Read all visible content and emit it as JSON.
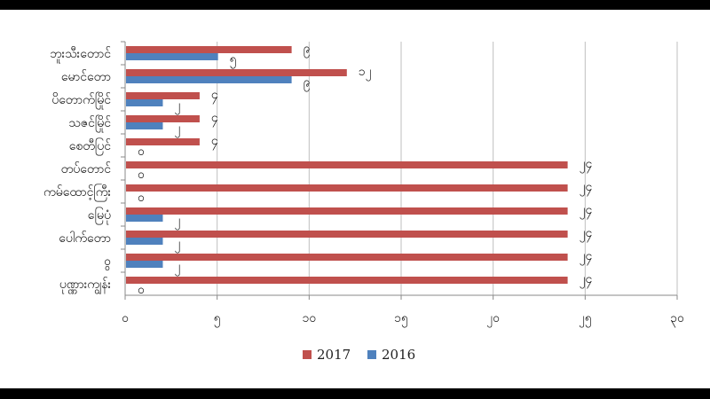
{
  "chart_data": {
    "type": "bar",
    "orientation": "horizontal",
    "categories": [
      "ဘူးသီးတောင်",
      "မောင်တော",
      "ပိတောက်မြိုင်",
      "သဇင်မြိုင်",
      "စေတီပြင်",
      "တပ်တောင်",
      "ကမ်ထောင့်ကြီး",
      "မြေပုံ",
      "ပေါက်တော",
      "ဝွ",
      "ပုဏ္ဏားကျွန်း"
    ],
    "series": [
      {
        "name": "2017",
        "color": "#c0504d",
        "values": [
          9,
          12,
          4,
          4,
          4,
          24,
          24,
          24,
          24,
          24,
          24
        ],
        "labels": [
          "၉",
          "၁၂",
          "၄",
          "၄",
          "၄",
          "၂၄",
          "၂၄",
          "၂၄",
          "၂၄",
          "၂၄",
          "၂၄"
        ]
      },
      {
        "name": "2016",
        "color": "#4f81bd",
        "values": [
          5,
          9,
          2,
          2,
          0,
          0,
          0,
          2,
          2,
          2,
          0
        ],
        "labels": [
          "၅",
          "၉",
          "၂",
          "၂",
          "၀",
          "၀",
          "၀",
          "၂",
          "၂",
          "၂",
          "၀"
        ]
      }
    ],
    "xlim": [
      0,
      30
    ],
    "xticks": [
      0,
      5,
      10,
      15,
      20,
      25,
      30
    ],
    "xtick_labels": [
      "၀",
      "၅",
      "၁၀",
      "၁၅",
      "၂၀",
      "၂၅",
      "၃၀"
    ],
    "grid": "vertical",
    "legend_position": "bottom",
    "title": "",
    "xlabel": "",
    "ylabel": ""
  }
}
